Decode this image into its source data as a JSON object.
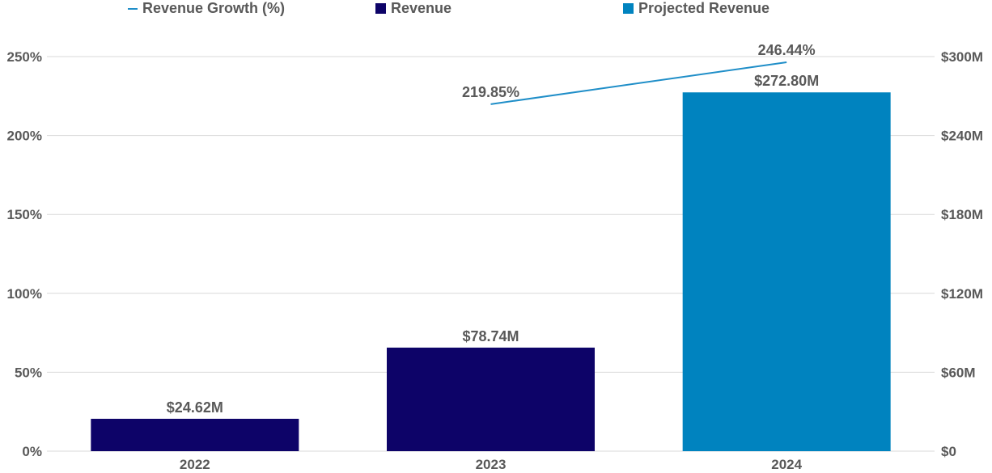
{
  "chart_data": {
    "type": "bar",
    "categories": [
      "2022",
      "2023",
      "2024"
    ],
    "series": [
      {
        "name": "Revenue",
        "values": [
          24.62,
          78.74,
          null
        ],
        "color": "#0d0368",
        "axis": "right"
      },
      {
        "name": "Projected Revenue",
        "values": [
          null,
          null,
          272.8
        ],
        "color": "#0083bf",
        "axis": "right"
      },
      {
        "name": "Revenue Growth (%)",
        "type": "line",
        "values": [
          null,
          219.85,
          246.44
        ],
        "color": "#1f8ec8",
        "axis": "left"
      }
    ],
    "bar_labels": [
      "$24.62M",
      "$78.74M",
      "$272.80M"
    ],
    "line_labels": [
      "",
      "219.85%",
      "246.44%"
    ],
    "left_axis": {
      "ylim": [
        0,
        250
      ],
      "ticks": [
        "0%",
        "50%",
        "100%",
        "150%",
        "200%",
        "250%"
      ]
    },
    "right_axis": {
      "ylim": [
        0,
        300
      ],
      "ticks": [
        "$0",
        "$60M",
        "$120M",
        "$180M",
        "$240M",
        "$300M"
      ]
    },
    "grid": true,
    "legend_position": "top"
  },
  "legend": [
    {
      "label": "Revenue Growth (%)",
      "kind": "line",
      "color": "#1f8ec8"
    },
    {
      "label": "Revenue",
      "kind": "box",
      "color": "#0d0368"
    },
    {
      "label": "Projected Revenue",
      "kind": "box",
      "color": "#0083bf"
    }
  ]
}
